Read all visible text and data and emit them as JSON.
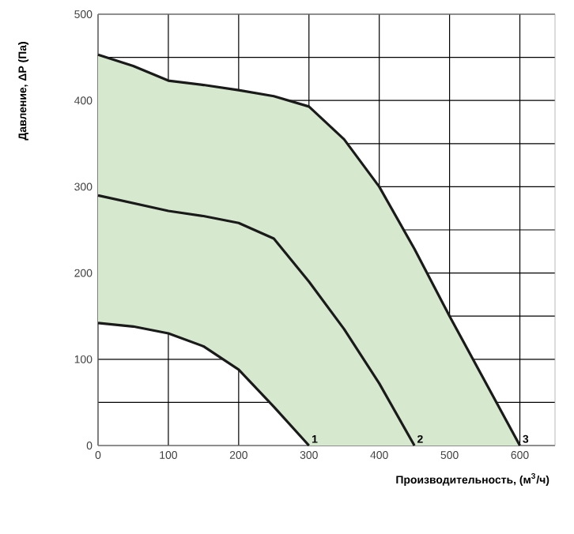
{
  "chart_data": {
    "type": "line",
    "xlabel": "Производительность, (м$^{3}$/ч)",
    "ylabel": "Давление, ΔP (Па)",
    "xlim": [
      0,
      650
    ],
    "ylim": [
      0,
      500
    ],
    "xticks": [
      0,
      100,
      200,
      300,
      400,
      500,
      600
    ],
    "yticks": [
      0,
      {
        "value": 50,
        "label": null
      },
      100,
      {
        "value": 150,
        "label": null
      },
      200,
      {
        "value": 250,
        "label": null
      },
      300,
      {
        "value": 350,
        "label": null
      },
      400,
      {
        "value": 450,
        "label": null
      },
      500
    ],
    "grid": true,
    "legend": false,
    "marker": "none",
    "line_style": "solid",
    "series": [
      {
        "name": "1",
        "color": "#1a1a1a",
        "x": [
          0,
          50,
          100,
          150,
          200,
          250,
          300
        ],
        "values": [
          142,
          138,
          130,
          115,
          88,
          45,
          0
        ]
      },
      {
        "name": "2",
        "color": "#1a1a1a",
        "x": [
          0,
          50,
          100,
          150,
          200,
          250,
          300,
          350,
          400,
          450
        ],
        "values": [
          290,
          281,
          272,
          266,
          258,
          240,
          190,
          135,
          72,
          0
        ]
      },
      {
        "name": "3",
        "color": "#1a1a1a",
        "x": [
          0,
          50,
          100,
          150,
          200,
          250,
          300,
          350,
          400,
          450,
          500,
          550,
          600
        ],
        "values": [
          453,
          440,
          423,
          418,
          412,
          405,
          393,
          355,
          300,
          228,
          150,
          75,
          0
        ],
        "lower": [
          142,
          138,
          130,
          115,
          88,
          45,
          0,
          0,
          0,
          0,
          0,
          0,
          0
        ],
        "upper": [
          453,
          440,
          423,
          418,
          412,
          405,
          393,
          355,
          300,
          228,
          150,
          75,
          0
        ]
      }
    ]
  }
}
